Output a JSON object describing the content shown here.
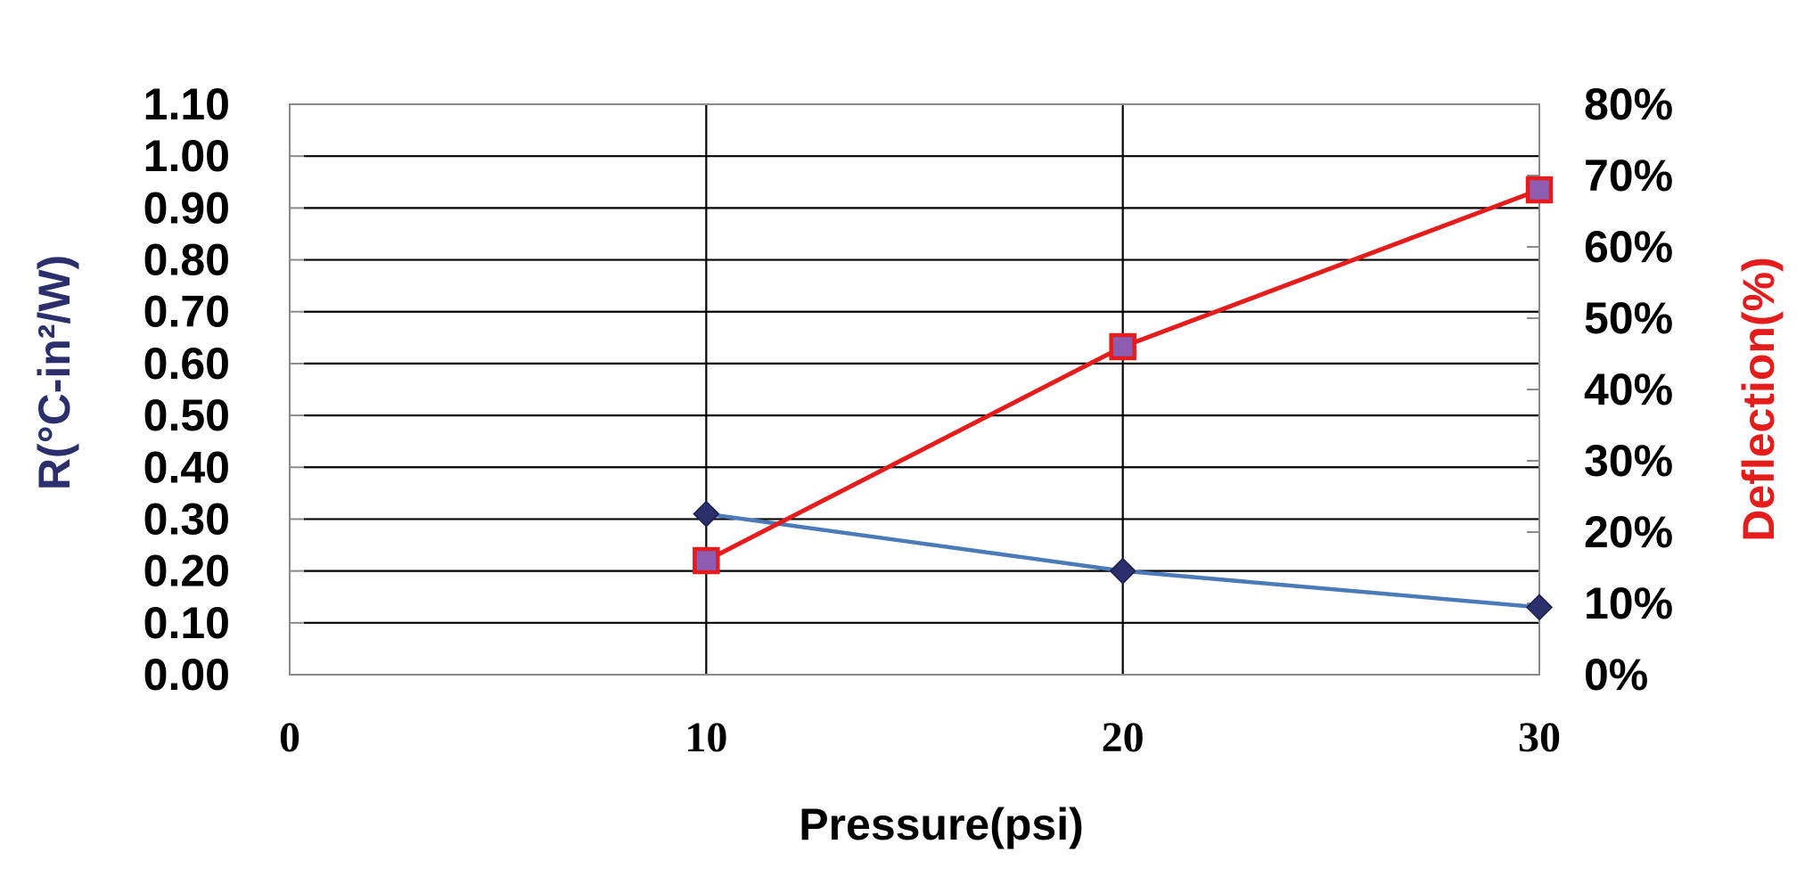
{
  "chart_data": {
    "type": "line",
    "title": "",
    "xlabel": "Pressure(psi)",
    "ylabel_left": "R(°C-in²/W)",
    "ylabel_right": "Deflection(%)",
    "x_ticks": [
      "0",
      "10",
      "20",
      "30"
    ],
    "y_left_ticks": [
      "0.00",
      "0.10",
      "0.20",
      "0.30",
      "0.40",
      "0.50",
      "0.60",
      "0.70",
      "0.80",
      "0.90",
      "1.00",
      "1.10"
    ],
    "y_right_ticks": [
      "0%",
      "10%",
      "20%",
      "30%",
      "40%",
      "50%",
      "60%",
      "70%",
      "80%"
    ],
    "xlim": [
      0,
      30
    ],
    "ylim_left": [
      0,
      1.1
    ],
    "ylim_right": [
      0,
      80
    ],
    "grid": true,
    "series": [
      {
        "axis": "left",
        "color": "#4a7ab8",
        "marker": "diamond",
        "marker_color": "#2b2f6b",
        "x": [
          10,
          20,
          30
        ],
        "values": [
          0.31,
          0.2,
          0.13
        ]
      },
      {
        "axis": "right",
        "color": "#e41c1c",
        "marker": "square",
        "marker_color": "#8e5cb0",
        "x": [
          10,
          20,
          30
        ],
        "values": [
          16,
          46,
          68
        ]
      }
    ],
    "colors": {
      "left_label": "#2b2f6b",
      "right_label": "#e41c1c"
    }
  }
}
